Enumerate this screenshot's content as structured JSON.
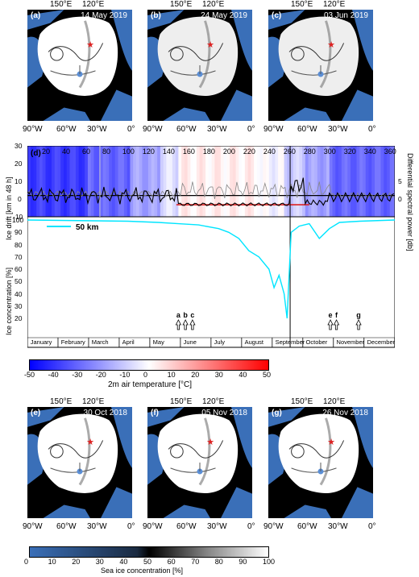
{
  "maps_top": [
    {
      "letter": "(a)",
      "date": "14 May 2019"
    },
    {
      "letter": "(b)",
      "date": "24 May 2019"
    },
    {
      "letter": "(c)",
      "date": "03 Jun 2019"
    }
  ],
  "maps_bottom": [
    {
      "letter": "(e)",
      "date": "30 Oct 2018"
    },
    {
      "letter": "(f)",
      "date": "05 Nov 2018"
    },
    {
      "letter": "(g)",
      "date": "26 Nov 2018"
    }
  ],
  "map_top_lon_labels": [
    "150°E",
    "120°E"
  ],
  "map_bottom_lon_labels": [
    "90°W",
    "60°W",
    "30°W",
    "0°"
  ],
  "timeseries": {
    "letter": "(d)",
    "top_ticks": [
      "20",
      "40",
      "60",
      "80",
      "100",
      "120",
      "140",
      "160",
      "180",
      "200",
      "220",
      "240",
      "260",
      "280",
      "300",
      "320",
      "340",
      "360"
    ],
    "ylabel_left_top": "Ice drift [km in 48 h]",
    "ylabel_right_top": "Differential spectral power [db]",
    "ylabel_left_bottom": "Ice concentration [%]",
    "yticks_top": [
      "30",
      "20",
      "10",
      "0",
      "-10"
    ],
    "yticks_right": [
      "5",
      "0"
    ],
    "yticks_bottom": [
      "100",
      "90",
      "80",
      "70",
      "60",
      "50",
      "40",
      "30",
      "20"
    ],
    "legend": "50 km",
    "months": [
      "January",
      "February",
      "March",
      "April",
      "May",
      "June",
      "July",
      "August",
      "September",
      "October",
      "November",
      "December"
    ],
    "event_labels": [
      "a",
      "b",
      "c",
      "e",
      "f",
      "g"
    ]
  },
  "colorbar_temp": {
    "ticks": [
      "-50",
      "-40",
      "-30",
      "-20",
      "-10",
      "0",
      "10",
      "20",
      "30",
      "40",
      "50"
    ],
    "label": "2m air temperature [°C]",
    "colors": [
      "#0000ff",
      "#ffffff",
      "#ff0000"
    ]
  },
  "colorbar_ice": {
    "ticks": [
      "0",
      "10",
      "20",
      "30",
      "40",
      "50",
      "60",
      "70",
      "80",
      "90",
      "100"
    ],
    "label": "Sea ice concentration [%]",
    "colors": [
      "#3a6fb8",
      "#000000",
      "#ffffff"
    ]
  },
  "chart_data": {
    "type": "line",
    "x_axis": "day of year",
    "xlim": [
      0,
      365
    ],
    "series": [
      {
        "name": "50 km",
        "color": "#00e5ff",
        "x": [
          0,
          100,
          130,
          150,
          170,
          190,
          200,
          210,
          220,
          230,
          240,
          245,
          250,
          255,
          258,
          262,
          270,
          280,
          290,
          300,
          310,
          330,
          365
        ],
        "y": [
          100,
          99,
          98,
          97,
          96,
          93,
          90,
          85,
          75,
          70,
          60,
          45,
          55,
          40,
          20,
          90,
          95,
          97,
          85,
          93,
          98,
          99,
          100
        ]
      }
    ],
    "ylim_concentration": [
      20,
      100
    ],
    "ylim_drift": [
      -10,
      30
    ]
  }
}
